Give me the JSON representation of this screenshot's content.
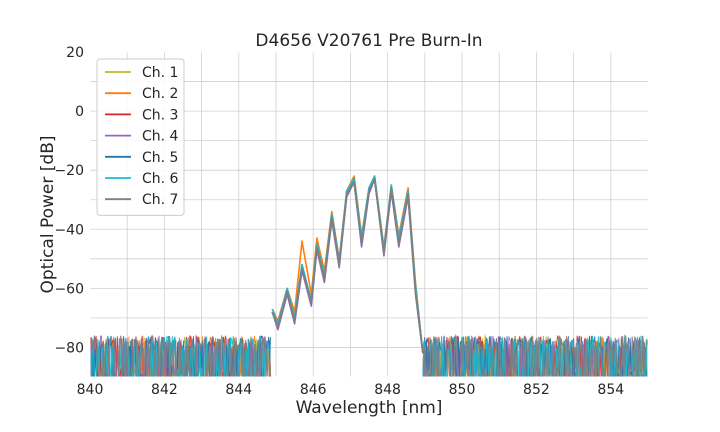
{
  "chart_data": {
    "type": "line",
    "title": "D4656 V20761 Pre Burn-In",
    "xlabel": "Wavelength [nm]",
    "ylabel": "Optical Power [dB]",
    "xlim": [
      840,
      855
    ],
    "ylim": [
      -90,
      20
    ],
    "x_ticks": [
      840,
      842,
      844,
      846,
      848,
      850,
      852,
      854
    ],
    "y_ticks": [
      20,
      0,
      -20,
      -40,
      -60,
      -80
    ],
    "grid": true,
    "legend_position": "top-left",
    "noise_floor_db": -82,
    "series": [
      {
        "name": "Ch. 1",
        "color": "#bcbd22",
        "points": [
          [
            844.9,
            -68
          ],
          [
            845.05,
            -72
          ],
          [
            845.3,
            -61
          ],
          [
            845.5,
            -70
          ],
          [
            845.7,
            -53
          ],
          [
            845.95,
            -65
          ],
          [
            846.1,
            -46
          ],
          [
            846.3,
            -56
          ],
          [
            846.5,
            -36
          ],
          [
            846.7,
            -52
          ],
          [
            846.9,
            -28
          ],
          [
            847.1,
            -23
          ],
          [
            847.3,
            -44
          ],
          [
            847.5,
            -27
          ],
          [
            847.65,
            -22
          ],
          [
            847.9,
            -48
          ],
          [
            848.1,
            -26
          ],
          [
            848.3,
            -44
          ],
          [
            848.55,
            -28
          ],
          [
            848.75,
            -60
          ],
          [
            848.95,
            -82
          ]
        ]
      },
      {
        "name": "Ch. 2",
        "color": "#ff7f0e",
        "points": [
          [
            844.9,
            -67
          ],
          [
            845.05,
            -71
          ],
          [
            845.3,
            -60
          ],
          [
            845.5,
            -68
          ],
          [
            845.7,
            -44
          ],
          [
            845.95,
            -62
          ],
          [
            846.1,
            -43
          ],
          [
            846.3,
            -54
          ],
          [
            846.5,
            -34
          ],
          [
            846.7,
            -50
          ],
          [
            846.9,
            -27
          ],
          [
            847.1,
            -22
          ],
          [
            847.3,
            -42
          ],
          [
            847.5,
            -26
          ],
          [
            847.65,
            -22
          ],
          [
            847.9,
            -46
          ],
          [
            848.1,
            -25
          ],
          [
            848.3,
            -42
          ],
          [
            848.55,
            -26
          ],
          [
            848.75,
            -58
          ],
          [
            848.95,
            -82
          ]
        ]
      },
      {
        "name": "Ch. 3",
        "color": "#d62728",
        "points": [
          [
            844.9,
            -68
          ],
          [
            845.05,
            -73
          ],
          [
            845.3,
            -61
          ],
          [
            845.5,
            -71
          ],
          [
            845.7,
            -53
          ],
          [
            845.95,
            -65
          ],
          [
            846.1,
            -46
          ],
          [
            846.3,
            -57
          ],
          [
            846.5,
            -36
          ],
          [
            846.7,
            -52
          ],
          [
            846.9,
            -28
          ],
          [
            847.1,
            -24
          ],
          [
            847.3,
            -45
          ],
          [
            847.5,
            -27
          ],
          [
            847.65,
            -23
          ],
          [
            847.9,
            -48
          ],
          [
            848.1,
            -27
          ],
          [
            848.3,
            -45
          ],
          [
            848.55,
            -28
          ],
          [
            848.75,
            -61
          ],
          [
            848.95,
            -82
          ]
        ]
      },
      {
        "name": "Ch. 4",
        "color": "#9467bd",
        "points": [
          [
            844.9,
            -68
          ],
          [
            845.05,
            -74
          ],
          [
            845.3,
            -62
          ],
          [
            845.5,
            -72
          ],
          [
            845.7,
            -54
          ],
          [
            845.95,
            -66
          ],
          [
            846.1,
            -47
          ],
          [
            846.3,
            -58
          ],
          [
            846.5,
            -37
          ],
          [
            846.7,
            -53
          ],
          [
            846.9,
            -29
          ],
          [
            847.1,
            -24
          ],
          [
            847.3,
            -46
          ],
          [
            847.5,
            -28
          ],
          [
            847.65,
            -23
          ],
          [
            847.9,
            -49
          ],
          [
            848.1,
            -27
          ],
          [
            848.3,
            -46
          ],
          [
            848.55,
            -29
          ],
          [
            848.75,
            -62
          ],
          [
            848.95,
            -82
          ]
        ]
      },
      {
        "name": "Ch. 5",
        "color": "#1f77b4",
        "points": [
          [
            844.9,
            -68
          ],
          [
            845.05,
            -72
          ],
          [
            845.3,
            -61
          ],
          [
            845.5,
            -70
          ],
          [
            845.7,
            -52
          ],
          [
            845.95,
            -65
          ],
          [
            846.1,
            -45
          ],
          [
            846.3,
            -56
          ],
          [
            846.5,
            -35
          ],
          [
            846.7,
            -51
          ],
          [
            846.9,
            -28
          ],
          [
            847.1,
            -23
          ],
          [
            847.3,
            -44
          ],
          [
            847.5,
            -27
          ],
          [
            847.65,
            -23
          ],
          [
            847.9,
            -47
          ],
          [
            848.1,
            -26
          ],
          [
            848.3,
            -44
          ],
          [
            848.55,
            -28
          ],
          [
            848.75,
            -60
          ],
          [
            848.95,
            -82
          ]
        ]
      },
      {
        "name": "Ch. 6",
        "color": "#17becf",
        "points": [
          [
            844.9,
            -67
          ],
          [
            845.05,
            -72
          ],
          [
            845.3,
            -60
          ],
          [
            845.5,
            -70
          ],
          [
            845.7,
            -52
          ],
          [
            845.95,
            -64
          ],
          [
            846.1,
            -45
          ],
          [
            846.3,
            -56
          ],
          [
            846.5,
            -35
          ],
          [
            846.7,
            -51
          ],
          [
            846.9,
            -27
          ],
          [
            847.1,
            -23
          ],
          [
            847.3,
            -43
          ],
          [
            847.5,
            -26
          ],
          [
            847.65,
            -22
          ],
          [
            847.9,
            -47
          ],
          [
            848.1,
            -25
          ],
          [
            848.3,
            -43
          ],
          [
            848.55,
            -27
          ],
          [
            848.75,
            -59
          ],
          [
            848.95,
            -82
          ]
        ]
      },
      {
        "name": "Ch. 7",
        "color": "#7f7f7f",
        "points": [
          [
            844.9,
            -68
          ],
          [
            845.05,
            -73
          ],
          [
            845.3,
            -61
          ],
          [
            845.5,
            -71
          ],
          [
            845.7,
            -53
          ],
          [
            845.95,
            -65
          ],
          [
            846.1,
            -46
          ],
          [
            846.3,
            -57
          ],
          [
            846.5,
            -36
          ],
          [
            846.7,
            -52
          ],
          [
            846.9,
            -28
          ],
          [
            847.1,
            -24
          ],
          [
            847.3,
            -45
          ],
          [
            847.5,
            -27
          ],
          [
            847.65,
            -23
          ],
          [
            847.9,
            -48
          ],
          [
            848.1,
            -26
          ],
          [
            848.3,
            -45
          ],
          [
            848.55,
            -28
          ],
          [
            848.75,
            -61
          ],
          [
            848.95,
            -82
          ]
        ]
      }
    ]
  }
}
